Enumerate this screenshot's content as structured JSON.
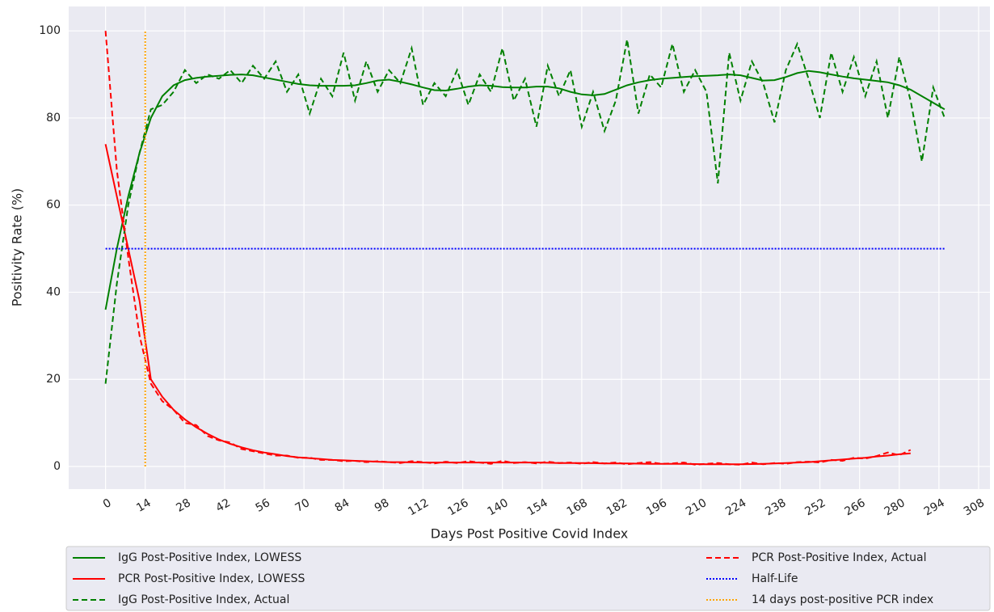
{
  "chart_data": {
    "type": "line",
    "x_label": "Days Post Positive Covid Index",
    "y_label": "Positivity Rate (%)",
    "xlim": [
      -13,
      312
    ],
    "ylim": [
      -5.2,
      105.6
    ],
    "xticks": [
      0,
      14,
      28,
      42,
      56,
      70,
      84,
      98,
      112,
      126,
      140,
      154,
      168,
      182,
      196,
      210,
      224,
      238,
      252,
      266,
      280,
      294,
      308
    ],
    "yticks": [
      0,
      20,
      40,
      60,
      80,
      100
    ],
    "grid": true,
    "legend": "below",
    "series": [
      {
        "name": "IgG Post-Positive Index, LOWESS",
        "color": "#008000",
        "dash": "solid",
        "x": [
          0,
          4,
          8,
          12,
          16,
          20,
          24,
          28,
          32,
          36,
          40,
          44,
          48,
          52,
          56,
          60,
          64,
          68,
          72,
          76,
          80,
          84,
          88,
          92,
          96,
          100,
          104,
          108,
          112,
          116,
          120,
          124,
          128,
          132,
          136,
          140,
          144,
          148,
          152,
          156,
          160,
          164,
          168,
          172,
          176,
          180,
          184,
          188,
          192,
          196,
          200,
          204,
          208,
          212,
          216,
          220,
          224,
          228,
          232,
          236,
          240,
          244,
          248,
          252,
          256,
          260,
          264,
          268,
          272,
          276,
          280,
          284,
          288,
          292,
          296
        ],
        "values": [
          36,
          50,
          62,
          72,
          80,
          85,
          87.5,
          88.7,
          89.2,
          89.5,
          89.7,
          89.9,
          90,
          89.8,
          89.3,
          88.8,
          88.3,
          87.8,
          87.5,
          87.4,
          87.4,
          87.4,
          87.5,
          88,
          88.6,
          88.8,
          88.3,
          87.7,
          87,
          86.4,
          86.3,
          86.7,
          87.2,
          87.5,
          87.4,
          87.1,
          87,
          87,
          87.2,
          87.2,
          86.8,
          86,
          85.4,
          85.2,
          85.5,
          86.5,
          87.5,
          88.2,
          88.7,
          89,
          89.2,
          89.4,
          89.6,
          89.7,
          89.8,
          90,
          89.8,
          89.2,
          88.6,
          88.7,
          89.4,
          90.3,
          90.8,
          90.5,
          90,
          89.5,
          89.1,
          88.8,
          88.5,
          88.2,
          87.5,
          86.5,
          85,
          83.5,
          82
        ]
      },
      {
        "name": "PCR Post-Positive Index, LOWESS",
        "color": "#ff0000",
        "dash": "solid",
        "x": [
          0,
          4,
          8,
          12,
          16,
          20,
          24,
          28,
          32,
          36,
          40,
          44,
          48,
          52,
          56,
          60,
          64,
          68,
          72,
          76,
          80,
          84,
          88,
          92,
          96,
          100,
          104,
          108,
          112,
          116,
          120,
          124,
          128,
          132,
          136,
          140,
          144,
          148,
          152,
          156,
          160,
          164,
          168,
          172,
          176,
          180,
          184,
          188,
          192,
          196,
          200,
          204,
          208,
          212,
          216,
          220,
          224,
          228,
          232,
          236,
          240,
          244,
          248,
          252,
          256,
          260,
          264,
          268,
          272,
          276,
          280,
          284
        ],
        "values": [
          74,
          62,
          50,
          38,
          20,
          16,
          13,
          10.8,
          9,
          7.5,
          6.2,
          5.2,
          4.4,
          3.7,
          3.2,
          2.8,
          2.4,
          2.1,
          1.9,
          1.7,
          1.5,
          1.4,
          1.3,
          1.2,
          1.1,
          1.0,
          1.0,
          0.95,
          0.9,
          0.9,
          0.9,
          0.9,
          0.9,
          0.9,
          0.9,
          0.9,
          0.9,
          0.9,
          0.9,
          0.85,
          0.8,
          0.8,
          0.8,
          0.75,
          0.7,
          0.7,
          0.7,
          0.65,
          0.6,
          0.6,
          0.6,
          0.6,
          0.55,
          0.5,
          0.5,
          0.5,
          0.5,
          0.55,
          0.6,
          0.7,
          0.8,
          0.9,
          1.0,
          1.2,
          1.4,
          1.6,
          1.8,
          2.0,
          2.3,
          2.5,
          2.8,
          3.0
        ]
      },
      {
        "name": "IgG Post-Positive Index, Actual",
        "color": "#008000",
        "dash": "dashed",
        "x": [
          0,
          4,
          8,
          12,
          16,
          20,
          24,
          28,
          32,
          36,
          40,
          44,
          48,
          52,
          56,
          60,
          64,
          68,
          72,
          76,
          80,
          84,
          88,
          92,
          96,
          100,
          104,
          108,
          112,
          116,
          120,
          124,
          128,
          132,
          136,
          140,
          144,
          148,
          152,
          156,
          160,
          164,
          168,
          172,
          176,
          180,
          184,
          188,
          192,
          196,
          200,
          204,
          208,
          212,
          216,
          220,
          224,
          228,
          232,
          236,
          240,
          244,
          248,
          252,
          256,
          260,
          264,
          268,
          272,
          276,
          280,
          284,
          288,
          292,
          296
        ],
        "values": [
          19,
          42,
          60,
          72,
          82,
          83,
          86,
          91,
          88,
          90,
          89,
          91,
          88,
          92,
          89,
          93,
          86,
          90,
          81,
          89,
          85,
          95,
          84,
          93,
          86,
          91,
          88,
          96,
          83,
          88,
          85,
          91,
          83,
          90,
          86,
          96,
          84,
          89,
          78,
          92,
          85,
          91,
          78,
          86,
          77,
          84,
          98,
          81,
          90,
          87,
          97,
          86,
          91,
          86,
          65,
          95,
          84,
          93,
          88,
          79,
          91,
          97,
          89,
          80,
          95,
          86,
          94,
          85,
          93,
          80,
          94,
          84,
          70,
          87,
          80
        ]
      },
      {
        "name": "PCR Post-Positive Index, Actual",
        "color": "#ff0000",
        "dash": "dashed",
        "x": [
          0,
          4,
          8,
          12,
          16,
          20,
          24,
          28,
          32,
          36,
          40,
          44,
          48,
          52,
          56,
          60,
          64,
          68,
          72,
          76,
          80,
          84,
          88,
          92,
          96,
          100,
          104,
          108,
          112,
          116,
          120,
          124,
          128,
          132,
          136,
          140,
          144,
          148,
          152,
          156,
          160,
          164,
          168,
          172,
          176,
          180,
          184,
          188,
          192,
          196,
          200,
          204,
          208,
          212,
          216,
          220,
          224,
          228,
          232,
          236,
          240,
          244,
          248,
          252,
          256,
          260,
          264,
          268,
          272,
          276,
          280,
          284
        ],
        "values": [
          100,
          68,
          48,
          30,
          19,
          15,
          13,
          10,
          9.5,
          7,
          6,
          5.5,
          4,
          3.5,
          3,
          2.5,
          2.5,
          2,
          2,
          1.5,
          1.5,
          1.2,
          1.3,
          1,
          1.2,
          1,
          0.8,
          1.2,
          1,
          0.7,
          1.1,
          0.8,
          1.2,
          0.9,
          0.6,
          1.3,
          0.8,
          1,
          0.7,
          1.1,
          0.8,
          0.9,
          0.6,
          1,
          0.7,
          0.9,
          0.5,
          0.8,
          1,
          0.6,
          0.7,
          0.9,
          0.4,
          0.6,
          0.8,
          0.5,
          0.4,
          0.9,
          0.5,
          0.8,
          0.6,
          1,
          1.1,
          0.9,
          1.5,
          1.3,
          2,
          1.8,
          2.4,
          3.2,
          2.6,
          3.8
        ]
      },
      {
        "name": "Half-Life",
        "color": "#0000ff",
        "dash": "dotted",
        "x": [
          0,
          296
        ],
        "values": [
          50,
          50
        ]
      },
      {
        "name": "14 days post-positive PCR index",
        "color": "#ffa500",
        "dash": "dotted",
        "x": [
          14,
          14
        ],
        "values": [
          0,
          100
        ]
      }
    ]
  }
}
